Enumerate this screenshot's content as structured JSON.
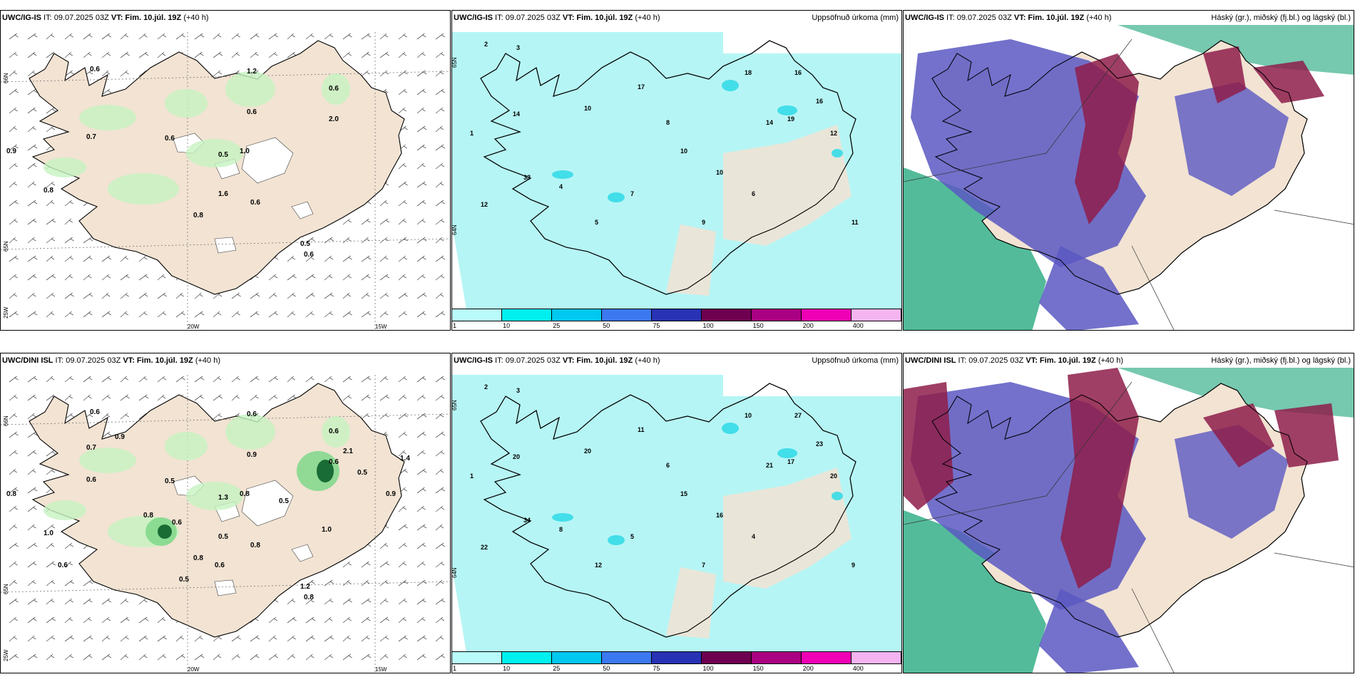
{
  "panels": [
    {
      "id": "tl",
      "model": "UWC/IG-IS",
      "title_mid": " IT: 09.07.2025 03Z ",
      "vt_label": "VT: Fim. 10.júl. 19Z",
      "lead": " (+40 h)",
      "right_title": "",
      "axis_labels": [
        "66N",
        "65N",
        "25W",
        "20W",
        "15W"
      ],
      "labels": [
        "0.9",
        "0.6",
        "0.7",
        "1.2",
        "0.6",
        "0.6",
        "2.0",
        "0.6",
        "0.5",
        "0.8",
        "1.0",
        "1.6",
        "0.6",
        "0.8",
        "0.5",
        "0.6"
      ]
    },
    {
      "id": "tm",
      "model": "UWC/IG-IS",
      "title_mid": " IT: 09.07.2025 03Z ",
      "vt_label": "VT: Fim. 10.júl. 19Z",
      "lead": " (+40 h)",
      "right_title": "Uppsöfnuð úrkoma (mm)",
      "axis_labels": [
        "65N",
        "64N"
      ],
      "labels": [
        "2",
        "3",
        "1",
        "14",
        "33",
        "12",
        "10",
        "10",
        "14",
        "16",
        "19",
        "12",
        "16",
        "18",
        "17",
        "10",
        "5",
        "7",
        "8",
        "9",
        "4",
        "6",
        "11"
      ]
    },
    {
      "id": "tr",
      "model": "UWC/IG-IS",
      "title_mid": " IT: 09.07.2025 03Z ",
      "vt_label": "VT: Fim. 10.júl. 19Z",
      "lead": " (+40 h)",
      "right_title": "Háský (gr.), miðský (fj.bl.) og lágský (bl.)",
      "axis_labels": [],
      "labels": []
    },
    {
      "id": "bl",
      "model": "UWC/DINI ISL",
      "title_mid": " IT: 09.07.2025 03Z ",
      "vt_label": "VT: Fim. 10.júl. 19Z",
      "lead": " (+40 h)",
      "right_title": "",
      "axis_labels": [
        "66N",
        "65N",
        "25W",
        "20W",
        "15W"
      ],
      "labels": [
        "0.8",
        "0.6",
        "0.6",
        "0.6",
        "0.9",
        "0.6",
        "0.6",
        "0.5",
        "1.3",
        "0.8",
        "0.8",
        "0.5",
        "0.8",
        "1.0",
        "1.2",
        "0.8",
        "0.7",
        "0.9",
        "0.5",
        "0.6",
        "0.8",
        "0.6",
        "0.5",
        "1.0",
        "0.5",
        "0.9",
        "1.4",
        "2.1",
        "0.6"
      ]
    },
    {
      "id": "bm",
      "model": "UWC/IG-IS",
      "title_mid": " IT: 09.07.2025 03Z ",
      "vt_label": "VT: Fim. 10.júl. 19Z",
      "lead": " (+40 h)",
      "right_title": "Uppsöfnuð úrkoma (mm)",
      "axis_labels": [
        "65N",
        "64N"
      ],
      "labels": [
        "2",
        "3",
        "1",
        "20",
        "34",
        "22",
        "20",
        "16",
        "21",
        "23",
        "17",
        "20",
        "27",
        "10",
        "11",
        "15",
        "12",
        "5",
        "6",
        "7",
        "8",
        "4",
        "9"
      ]
    },
    {
      "id": "br",
      "model": "UWC/DINI ISL",
      "title_mid": " IT: 09.07.2025 03Z ",
      "vt_label": "VT: Fim. 10.júl. 19Z",
      "lead": " (+40 h)",
      "right_title": "Háský (gr.), miðský (fj.bl.) og lágský (bl.)",
      "axis_labels": [],
      "labels": []
    }
  ],
  "precip_colorbar": {
    "ticks": [
      "1",
      "10",
      "25",
      "50",
      "75",
      "100",
      "150",
      "200",
      "400"
    ],
    "colors": [
      "#b9fbfb",
      "#00f0f0",
      "#00c8f0",
      "#3c78f0",
      "#2832b4",
      "#6e0050",
      "#aa0082",
      "#f000b4",
      "#f5b4f0"
    ]
  },
  "colors": {
    "land": "#f2e3d3",
    "precip_light": "#b6f5f5",
    "green_light": "#c6f2c1",
    "green_mid": "#7fd88a",
    "green_dark": "#0c5f2a",
    "low_cloud": "#5a58c2",
    "mid_cloud": "#8e1d4a",
    "high_cloud": "#1aa478"
  }
}
